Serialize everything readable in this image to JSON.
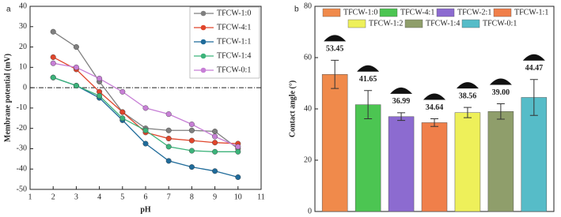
{
  "chart_data": [
    {
      "type": "line",
      "panel": "a",
      "x_label": "pH",
      "y_label": "Membrane potential (mV)",
      "x": [
        2,
        3,
        4,
        5,
        6,
        7,
        8,
        9,
        10
      ],
      "xlim": [
        1,
        11
      ],
      "xticks": [
        1,
        2,
        3,
        4,
        5,
        6,
        7,
        8,
        9,
        10,
        11
      ],
      "ylim": [
        -50,
        40
      ],
      "yticks": [
        -50,
        -40,
        -30,
        -20,
        -10,
        0,
        10,
        20,
        30,
        40
      ],
      "reference_line": 0,
      "series": [
        {
          "name": "TFCW-1:0",
          "color": "#7f7f7f",
          "values": [
            27.5,
            20,
            3,
            -12,
            -20,
            -21,
            -21,
            -21.5,
            -30
          ]
        },
        {
          "name": "TFCW-4:1",
          "color": "#e0452b",
          "values": [
            15,
            9,
            -2,
            -12,
            -22,
            -25,
            -26,
            -27,
            -27.5
          ]
        },
        {
          "name": "TFCW-1:1",
          "color": "#1f6b9a",
          "values": [
            5,
            1,
            -5,
            -16,
            -27.5,
            -36,
            -39,
            -41,
            -44
          ]
        },
        {
          "name": "TFCW-1:4",
          "color": "#3cb37a",
          "values": [
            5,
            1,
            -4,
            -15,
            -21,
            -29,
            -31,
            -31.5,
            -31.5
          ]
        },
        {
          "name": "TFCW-0:1",
          "color": "#c77fd6",
          "values": [
            12,
            10,
            4.5,
            -2,
            -10,
            -13,
            -18,
            -24,
            -29
          ]
        }
      ]
    },
    {
      "type": "bar",
      "panel": "b",
      "y_label": "Contact angle (°)",
      "ylim": [
        0,
        80
      ],
      "yticks": [
        0,
        20,
        40,
        60,
        80
      ],
      "categories": [
        "TFCW-1:0",
        "TFCW-4:1",
        "TFCW-2:1",
        "TFCW-1:1",
        "TFCW-1:2",
        "TFCW-1:4",
        "TFCW-0:1"
      ],
      "colors": [
        "#f08a4b",
        "#4cc552",
        "#8c6bd0",
        "#f07f4a",
        "#eef05a",
        "#8f9e6b",
        "#56bcc8"
      ],
      "values": [
        53.45,
        41.65,
        36.99,
        34.64,
        38.56,
        39.0,
        44.47
      ],
      "value_labels": [
        "53.45",
        "41.65",
        "36.99",
        "34.64",
        "38.56",
        "39.00",
        "44.47"
      ],
      "errors": [
        5.5,
        5.5,
        1.5,
        1.5,
        2,
        3,
        7
      ]
    }
  ]
}
